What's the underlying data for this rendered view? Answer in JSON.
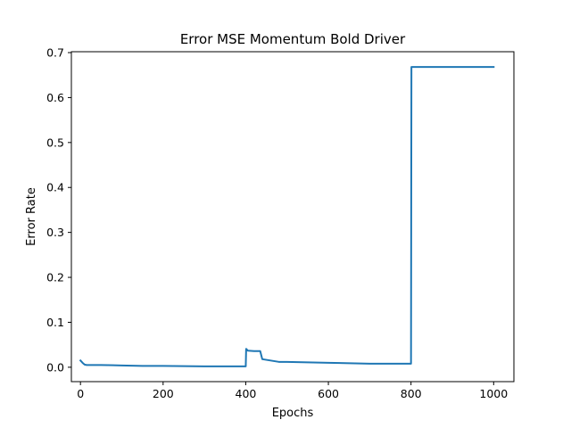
{
  "chart_data": {
    "type": "line",
    "title": "Error MSE Momentum Bold Driver",
    "xlabel": "Epochs",
    "ylabel": "Error Rate",
    "xlim": [
      -22,
      1049
    ],
    "ylim": [
      -0.032,
      0.702
    ],
    "x_ticks": [
      0,
      200,
      400,
      600,
      800,
      1000
    ],
    "x_tick_labels": [
      "0",
      "200",
      "400",
      "600",
      "800",
      "1000"
    ],
    "y_ticks": [
      0.0,
      0.1,
      0.2,
      0.3,
      0.4,
      0.5,
      0.6,
      0.7
    ],
    "y_tick_labels": [
      "0.0",
      "0.1",
      "0.2",
      "0.3",
      "0.4",
      "0.5",
      "0.6",
      "0.7"
    ],
    "grid": false,
    "series": [
      {
        "color": "#1f77b4",
        "x": [
          0,
          5,
          10,
          15,
          50,
          100,
          150,
          200,
          300,
          399,
          400,
          401,
          405,
          420,
          435,
          440,
          460,
          480,
          500,
          550,
          600,
          700,
          799,
          800,
          801,
          810,
          850,
          900,
          1000
        ],
        "y": [
          0.015,
          0.01,
          0.006,
          0.005,
          0.005,
          0.004,
          0.003,
          0.003,
          0.002,
          0.002,
          0.002,
          0.041,
          0.037,
          0.036,
          0.036,
          0.018,
          0.015,
          0.012,
          0.012,
          0.011,
          0.01,
          0.008,
          0.008,
          0.008,
          0.668,
          0.668,
          0.668,
          0.668,
          0.668
        ]
      }
    ]
  }
}
